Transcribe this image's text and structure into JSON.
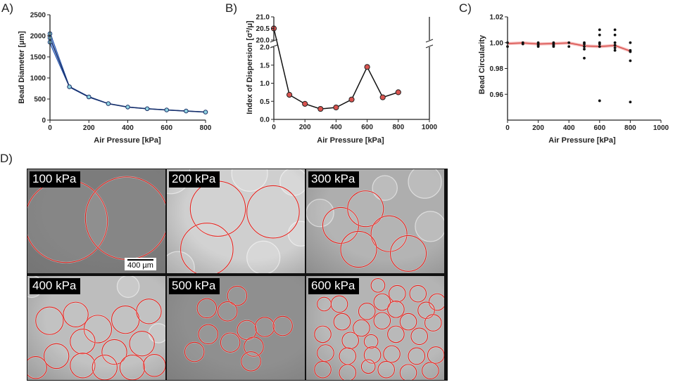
{
  "figure": {
    "panel_labels": {
      "a": "A)",
      "b": "B)",
      "c": "C)",
      "d": "D)"
    },
    "chart_data": [
      {
        "type": "line",
        "panel": "A",
        "xlabel": "Air Pressure [kPa]",
        "ylabel": "Bead Diameter [µm]",
        "xlim": [
          0,
          800
        ],
        "ylim": [
          0,
          2500
        ],
        "xticks": [
          0,
          200,
          400,
          600,
          800
        ],
        "yticks": [
          0,
          500,
          1000,
          1500,
          2000,
          2500
        ],
        "grid": false,
        "series": [
          {
            "x": [
              0,
              100,
              200,
              300,
              400,
              500,
              600,
              700,
              800
            ],
            "values": [
              1950,
              790,
              550,
              390,
              310,
              270,
              240,
              215,
              190
            ],
            "upper": [
              2080,
              800,
              560,
              395,
              315,
              275,
              245,
              220,
              195
            ],
            "lower": [
              1820,
              780,
              540,
              385,
              305,
              265,
              235,
              210,
              185
            ],
            "color": "#1f4fa8",
            "fill": "#3b6fd1"
          }
        ],
        "points": [
          [
            0,
            2050
          ],
          [
            0,
            1950
          ],
          [
            0,
            1850
          ],
          [
            100,
            790
          ],
          [
            200,
            550
          ],
          [
            300,
            390
          ],
          [
            400,
            310
          ],
          [
            500,
            270
          ],
          [
            600,
            240
          ],
          [
            700,
            215
          ],
          [
            800,
            190
          ]
        ]
      },
      {
        "type": "line",
        "panel": "B",
        "xlabel": "Air Pressure [kPa]",
        "ylabel": "Index of Dispersion [σ²/μ]",
        "xlim": [
          0,
          1000
        ],
        "ylim_lower": [
          0,
          2.0
        ],
        "ylim_upper": [
          20.0,
          21.0
        ],
        "xticks": [
          0,
          200,
          400,
          600,
          800,
          1000
        ],
        "yticks_lower": [
          "0.0",
          "0.5",
          "1.0",
          "1.5",
          "2.0"
        ],
        "yticks_upper": [
          "20.0",
          "20.5",
          "21.0"
        ],
        "grid": false,
        "axis_break": true,
        "series": [
          {
            "x": [
              0,
              100,
              200,
              300,
              400,
              500,
              600,
              700,
              800
            ],
            "values": [
              20.5,
              0.68,
              0.43,
              0.29,
              0.33,
              0.55,
              1.45,
              0.61,
              0.75
            ],
            "color": "#111111",
            "marker": "#d9534f"
          }
        ]
      },
      {
        "type": "scatter",
        "panel": "C",
        "xlabel": "Air Pressure [kPa]",
        "ylabel": "Bead Circularity",
        "xlim": [
          0,
          1000
        ],
        "ylim": [
          0.94,
          1.02
        ],
        "xticks": [
          0,
          200,
          400,
          600,
          800,
          1000
        ],
        "yticks": [
          "0.96",
          "0.98",
          "1.00",
          "1.02"
        ],
        "grid": false,
        "mean_line": {
          "x": [
            0,
            100,
            200,
            300,
            400,
            500,
            600,
            700,
            800
          ],
          "values": [
            0.9993,
            0.9998,
            0.999,
            0.9993,
            0.9998,
            0.9975,
            0.997,
            0.9978,
            0.9935
          ],
          "color": "#d9534f"
        },
        "points": [
          [
            0,
            0.997
          ],
          [
            0,
            1.0
          ],
          [
            100,
            0.999
          ],
          [
            100,
            1.0
          ],
          [
            200,
            0.997
          ],
          [
            200,
            0.998
          ],
          [
            200,
            0.999
          ],
          [
            200,
            1.0
          ],
          [
            300,
            0.997
          ],
          [
            300,
            0.998
          ],
          [
            300,
            0.999
          ],
          [
            300,
            1.0
          ],
          [
            400,
            0.997
          ],
          [
            400,
            1.0
          ],
          [
            500,
            0.988
          ],
          [
            500,
            0.995
          ],
          [
            500,
            0.997
          ],
          [
            500,
            0.999
          ],
          [
            500,
            1.0
          ],
          [
            600,
            0.955
          ],
          [
            600,
            0.997
          ],
          [
            600,
            0.999
          ],
          [
            600,
            1.0
          ],
          [
            600,
            1.006
          ],
          [
            600,
            1.01
          ],
          [
            700,
            0.994
          ],
          [
            700,
            0.996
          ],
          [
            700,
            0.998
          ],
          [
            700,
            1.0
          ],
          [
            700,
            1.006
          ],
          [
            700,
            1.01
          ],
          [
            800,
            0.954
          ],
          [
            800,
            0.986
          ],
          [
            800,
            0.993
          ],
          [
            800,
            0.994
          ],
          [
            800,
            1.0
          ]
        ]
      }
    ],
    "micrographs": [
      {
        "label": "100 kPa",
        "bg": "#7c7c7c",
        "beads": [
          [
            0.28,
            0.5,
            0.3
          ],
          [
            0.72,
            0.47,
            0.3
          ]
        ],
        "ghosts": []
      },
      {
        "label": "200 kPa",
        "bg": "#cfcfcf",
        "beads": [
          [
            0.37,
            0.38,
            0.2
          ],
          [
            0.77,
            0.41,
            0.19
          ],
          [
            0.29,
            0.77,
            0.19
          ]
        ],
        "ghosts": [
          [
            0.03,
            0.05,
            0.14
          ],
          [
            0.6,
            0.04,
            0.13
          ],
          [
            0.92,
            0.12,
            0.1
          ],
          [
            0.08,
            0.95,
            0.12
          ],
          [
            0.7,
            0.85,
            0.12
          ],
          [
            0.97,
            0.62,
            0.09
          ]
        ]
      },
      {
        "label": "300 kPa",
        "bg": "#aeaeae",
        "beads": [
          [
            0.25,
            0.54,
            0.13
          ],
          [
            0.43,
            0.38,
            0.13
          ],
          [
            0.6,
            0.62,
            0.13
          ],
          [
            0.38,
            0.77,
            0.13
          ],
          [
            0.74,
            0.81,
            0.13
          ]
        ],
        "ghosts": [
          [
            0.86,
            0.12,
            0.12
          ],
          [
            0.1,
            0.42,
            0.1
          ],
          [
            0.9,
            0.55,
            0.11
          ],
          [
            0.57,
            0.18,
            0.09
          ]
        ]
      },
      {
        "label": "400 kPa",
        "bg": "#bdbdbd",
        "beads": [
          [
            0.16,
            0.43,
            0.1
          ],
          [
            0.35,
            0.37,
            0.09
          ],
          [
            0.51,
            0.51,
            0.1
          ],
          [
            0.71,
            0.42,
            0.1
          ],
          [
            0.88,
            0.34,
            0.09
          ],
          [
            0.4,
            0.63,
            0.09
          ],
          [
            0.63,
            0.73,
            0.09
          ],
          [
            0.83,
            0.65,
            0.09
          ],
          [
            0.21,
            0.77,
            0.09
          ],
          [
            0.4,
            0.86,
            0.09
          ],
          [
            0.56,
            0.88,
            0.09
          ],
          [
            0.76,
            0.88,
            0.09
          ],
          [
            0.92,
            0.86,
            0.08
          ],
          [
            0.06,
            0.88,
            0.08
          ]
        ],
        "ghosts": [
          [
            0.03,
            0.1,
            0.08
          ],
          [
            0.73,
            0.1,
            0.08
          ],
          [
            0.95,
            0.55,
            0.07
          ]
        ]
      },
      {
        "label": "500 kPa",
        "bg": "#8f8f8f",
        "beads": [
          [
            0.51,
            0.19,
            0.07
          ],
          [
            0.29,
            0.31,
            0.07
          ],
          [
            0.44,
            0.34,
            0.07
          ],
          [
            0.58,
            0.52,
            0.07
          ],
          [
            0.71,
            0.49,
            0.07
          ],
          [
            0.84,
            0.48,
            0.07
          ],
          [
            0.3,
            0.56,
            0.07
          ],
          [
            0.46,
            0.64,
            0.07
          ],
          [
            0.63,
            0.68,
            0.07
          ],
          [
            0.2,
            0.73,
            0.07
          ],
          [
            0.61,
            0.82,
            0.07
          ]
        ],
        "ghosts": []
      },
      {
        "label": "600 kPa",
        "bg": "#b4b4b4",
        "beads": [
          [
            0.52,
            0.09,
            0.05
          ],
          [
            0.66,
            0.17,
            0.06
          ],
          [
            0.81,
            0.17,
            0.06
          ],
          [
            0.95,
            0.25,
            0.06
          ],
          [
            0.55,
            0.25,
            0.06
          ],
          [
            0.13,
            0.27,
            0.05
          ],
          [
            0.24,
            0.27,
            0.06
          ],
          [
            0.44,
            0.34,
            0.06
          ],
          [
            0.65,
            0.32,
            0.06
          ],
          [
            0.87,
            0.33,
            0.06
          ],
          [
            0.26,
            0.44,
            0.06
          ],
          [
            0.4,
            0.5,
            0.06
          ],
          [
            0.55,
            0.43,
            0.06
          ],
          [
            0.74,
            0.44,
            0.06
          ],
          [
            0.92,
            0.45,
            0.06
          ],
          [
            0.12,
            0.56,
            0.06
          ],
          [
            0.32,
            0.62,
            0.06
          ],
          [
            0.47,
            0.63,
            0.05
          ],
          [
            0.65,
            0.56,
            0.06
          ],
          [
            0.82,
            0.58,
            0.06
          ],
          [
            0.14,
            0.74,
            0.06
          ],
          [
            0.3,
            0.77,
            0.06
          ],
          [
            0.48,
            0.76,
            0.06
          ],
          [
            0.62,
            0.75,
            0.06
          ],
          [
            0.8,
            0.77,
            0.06
          ],
          [
            0.94,
            0.76,
            0.06
          ],
          [
            0.12,
            0.9,
            0.06
          ],
          [
            0.3,
            0.93,
            0.06
          ],
          [
            0.45,
            0.87,
            0.05
          ],
          [
            0.58,
            0.9,
            0.06
          ],
          [
            0.74,
            0.93,
            0.06
          ],
          [
            0.9,
            0.91,
            0.06
          ]
        ],
        "ghosts": []
      }
    ],
    "scalebar_label": "400 µm"
  }
}
